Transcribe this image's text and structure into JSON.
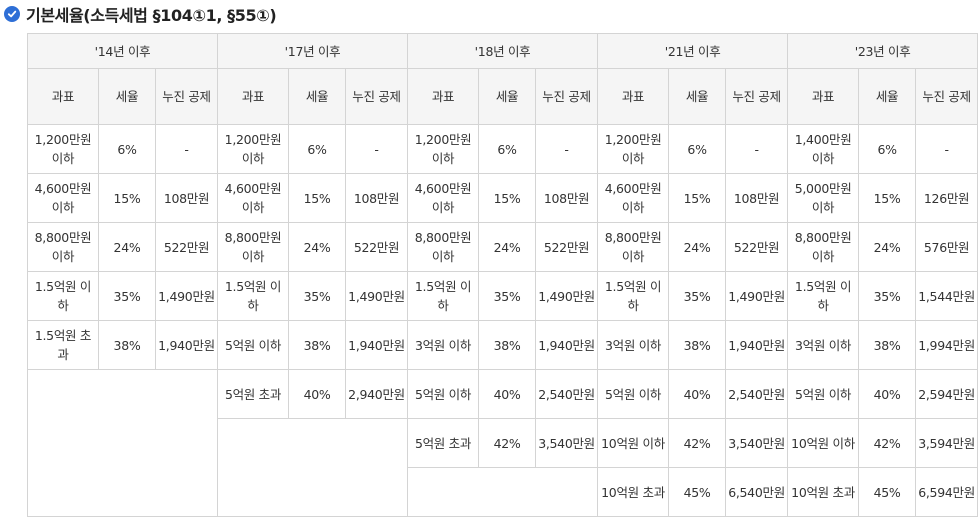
{
  "heading": {
    "title": "기본세율(소득세법 §104①1, §55①)",
    "icon": "check-circle-icon",
    "icon_color": "#2e6fd6"
  },
  "table": {
    "periods": [
      "'14년 이후",
      "'17년 이후",
      "'18년 이후",
      "'21년 이후",
      "'23년 이후"
    ],
    "columns": {
      "base": "과표",
      "rate": "세율",
      "deduction": "누진 공제"
    },
    "rows": [
      [
        {
          "base": "1,200만원 이하",
          "rate": "6%",
          "deduction": "-"
        },
        {
          "base": "1,200만원 이하",
          "rate": "6%",
          "deduction": "-"
        },
        {
          "base": "1,200만원 이하",
          "rate": "6%",
          "deduction": "-"
        },
        {
          "base": "1,200만원 이하",
          "rate": "6%",
          "deduction": "-"
        },
        {
          "base": "1,400만원 이하",
          "rate": "6%",
          "deduction": "-"
        }
      ],
      [
        {
          "base": "4,600만원 이하",
          "rate": "15%",
          "deduction": "108만원"
        },
        {
          "base": "4,600만원 이하",
          "rate": "15%",
          "deduction": "108만원"
        },
        {
          "base": "4,600만원 이하",
          "rate": "15%",
          "deduction": "108만원"
        },
        {
          "base": "4,600만원 이하",
          "rate": "15%",
          "deduction": "108만원"
        },
        {
          "base": "5,000만원 이하",
          "rate": "15%",
          "deduction": "126만원"
        }
      ],
      [
        {
          "base": "8,800만원 이하",
          "rate": "24%",
          "deduction": "522만원"
        },
        {
          "base": "8,800만원 이하",
          "rate": "24%",
          "deduction": "522만원"
        },
        {
          "base": "8,800만원 이하",
          "rate": "24%",
          "deduction": "522만원"
        },
        {
          "base": "8,800만원 이하",
          "rate": "24%",
          "deduction": "522만원"
        },
        {
          "base": "8,800만원 이하",
          "rate": "24%",
          "deduction": "576만원"
        }
      ],
      [
        {
          "base": "1.5억원 이하",
          "rate": "35%",
          "deduction": "1,490만원"
        },
        {
          "base": "1.5억원 이하",
          "rate": "35%",
          "deduction": "1,490만원"
        },
        {
          "base": "1.5억원 이하",
          "rate": "35%",
          "deduction": "1,490만원"
        },
        {
          "base": "1.5억원 이하",
          "rate": "35%",
          "deduction": "1,490만원"
        },
        {
          "base": "1.5억원 이하",
          "rate": "35%",
          "deduction": "1,544만원"
        }
      ],
      [
        {
          "base": "1.5억원 초과",
          "rate": "38%",
          "deduction": "1,940만원"
        },
        {
          "base": "5억원 이하",
          "rate": "38%",
          "deduction": "1,940만원"
        },
        {
          "base": "3억원 이하",
          "rate": "38%",
          "deduction": "1,940만원"
        },
        {
          "base": "3억원 이하",
          "rate": "38%",
          "deduction": "1,940만원"
        },
        {
          "base": "3억원 이하",
          "rate": "38%",
          "deduction": "1,994만원"
        }
      ],
      [
        null,
        {
          "base": "5억원 초과",
          "rate": "40%",
          "deduction": "2,940만원"
        },
        {
          "base": "5억원 이하",
          "rate": "40%",
          "deduction": "2,540만원"
        },
        {
          "base": "5억원 이하",
          "rate": "40%",
          "deduction": "2,540만원"
        },
        {
          "base": "5억원 이하",
          "rate": "40%",
          "deduction": "2,594만원"
        }
      ],
      [
        null,
        null,
        {
          "base": "5억원 초과",
          "rate": "42%",
          "deduction": "3,540만원"
        },
        {
          "base": "10억원 이하",
          "rate": "42%",
          "deduction": "3,540만원"
        },
        {
          "base": "10억원 이하",
          "rate": "42%",
          "deduction": "3,594만원"
        }
      ],
      [
        null,
        null,
        null,
        {
          "base": "10억원 초과",
          "rate": "45%",
          "deduction": "6,540만원"
        },
        {
          "base": "10억원 초과",
          "rate": "45%",
          "deduction": "6,594만원"
        }
      ]
    ]
  }
}
